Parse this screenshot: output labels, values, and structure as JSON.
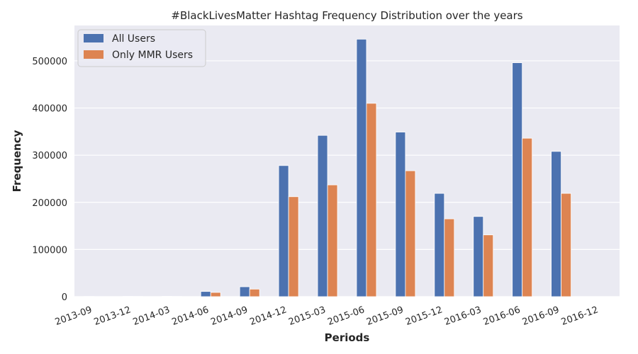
{
  "chart_data": {
    "type": "bar",
    "title": "#BlackLivesMatter Hashtag Frequency Distribution over the years",
    "xlabel": "Periods",
    "ylabel": "Frequency",
    "categories": [
      "2013-09",
      "2013-12",
      "2014-03",
      "2014-06",
      "2014-09",
      "2014-12",
      "2015-03",
      "2015-06",
      "2015-09",
      "2015-12",
      "2016-03",
      "2016-06",
      "2016-09",
      "2016-12"
    ],
    "series": [
      {
        "name": "All Users",
        "color": "#4c72b0",
        "values": [
          500,
          600,
          800,
          11000,
          21000,
          278000,
          342000,
          546000,
          349000,
          219000,
          170000,
          496000,
          308000,
          0
        ]
      },
      {
        "name": "Only MMR Users",
        "color": "#dd8452",
        "values": [
          300,
          400,
          500,
          9000,
          16000,
          212000,
          237000,
          410000,
          267000,
          165000,
          131000,
          336000,
          219000,
          0
        ]
      }
    ],
    "ylim": [
      0,
      575000
    ],
    "yticks": [
      0,
      100000,
      200000,
      300000,
      400000,
      500000
    ],
    "ytick_labels": [
      "0",
      "100000",
      "200000",
      "300000",
      "400000",
      "500000"
    ],
    "grid": true,
    "legend_position": "top-left",
    "background": "#eaeaf2",
    "grid_color": "#ffffff"
  }
}
